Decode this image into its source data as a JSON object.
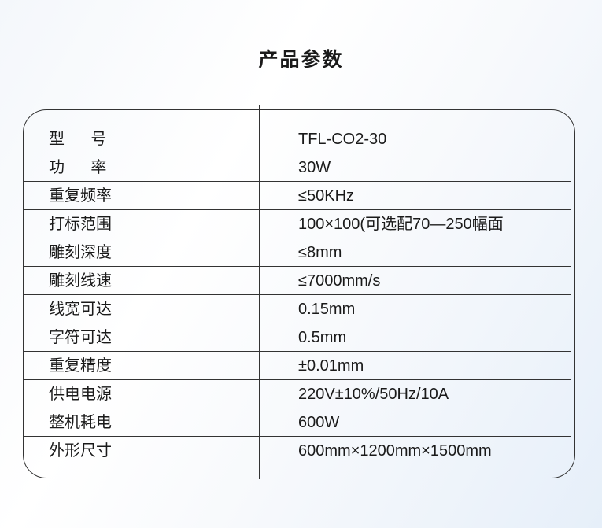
{
  "title": "产品参数",
  "rows": [
    {
      "label": "型      号",
      "value": "TFL-CO2-30"
    },
    {
      "label": "功      率",
      "value": "30W"
    },
    {
      "label": "重复频率",
      "value": "≤50KHz"
    },
    {
      "label": "打标范围",
      "value": "100×100(可选配70—250幅面"
    },
    {
      "label": "雕刻深度",
      "value": "≤8mm"
    },
    {
      "label": "雕刻线速",
      "value": "≤7000mm/s"
    },
    {
      "label": "线宽可达",
      "value": "0.15mm"
    },
    {
      "label": "字符可达",
      "value": "0.5mm"
    },
    {
      "label": "重复精度",
      "value": "±0.01mm"
    },
    {
      "label": "供电电源",
      "value": "220V±10%/50Hz/10A"
    },
    {
      "label": "整机耗电",
      "value": "600W"
    },
    {
      "label": "外形尺寸",
      "value": "600mm×1200mm×1500mm"
    }
  ]
}
